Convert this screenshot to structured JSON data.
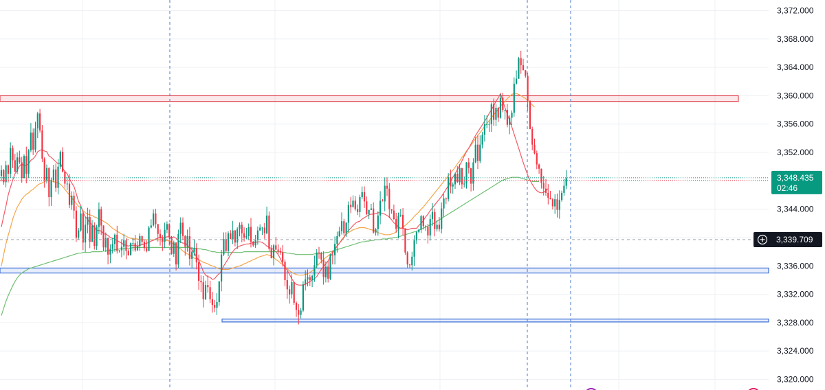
{
  "chart_data": {
    "type": "candlestick",
    "ylim": [
      3318.5,
      3373.5
    ],
    "y_ticks": [
      "3,372.000",
      "3,368.000",
      "3,364.000",
      "3,360.000",
      "3,356.000",
      "3,352.000",
      "3,348.000",
      "3,344.000",
      "3,340.000",
      "3,336.000",
      "3,332.000",
      "3,328.000",
      "3,324.000",
      "3,320.000"
    ],
    "grid": true,
    "last_price": {
      "label": "3,348.435",
      "timer": "02:46",
      "value": 3348.435
    },
    "crosshair": {
      "label": "3,339.709",
      "value": 3339.709
    },
    "zones": [
      {
        "name": "resistance",
        "from": 3359.2,
        "to": 3360.0,
        "color": "#e04550"
      },
      {
        "name": "support-upper",
        "from": 3335.0,
        "to": 3335.7,
        "color": "#3b6fd9"
      },
      {
        "name": "support-lower",
        "from": 3328.1,
        "to": 3328.5,
        "color": "#3b6fd9"
      }
    ],
    "closes": [
      3349.5,
      3347.8,
      3350.2,
      3349.0,
      3352.6,
      3350.9,
      3349.3,
      3351.3,
      3350.6,
      3348.4,
      3351.5,
      3349.0,
      3352.3,
      3354.8,
      3352.4,
      3355.4,
      3357.5,
      3355.1,
      3351.1,
      3348.1,
      3349.8,
      3345.7,
      3348.1,
      3349.6,
      3347.0,
      3350.0,
      3352.1,
      3349.3,
      3347.6,
      3347.6,
      3344.6,
      3345.9,
      3343.8,
      3340.0,
      3341.0,
      3343.4,
      3339.3,
      3341.8,
      3342.9,
      3339.4,
      3341.7,
      3338.8,
      3341.5,
      3344.0,
      3341.7,
      3338.6,
      3339.9,
      3337.6,
      3338.4,
      3339.1,
      3340.4,
      3338.1,
      3338.2,
      3338.7,
      3339.6,
      3338.1,
      3337.5,
      3339.2,
      3339.2,
      3338.2,
      3338.8,
      3340.2,
      3339.4,
      3338.5,
      3338.1,
      3341.4,
      3341.7,
      3343.4,
      3341.9,
      3340.5,
      3339.9,
      3339.4,
      3341.1,
      3341.9,
      3340.1,
      3337.7,
      3339.3,
      3336.2,
      3340.5,
      3342.1,
      3340.2,
      3338.7,
      3340.2,
      3337.0,
      3338.0,
      3338.5,
      3336.5,
      3333.9,
      3333.7,
      3331.3,
      3333.3,
      3333.0,
      3331.3,
      3330.5,
      3330.1,
      3330.9,
      3333.8,
      3337.6,
      3339.8,
      3338.1,
      3340.6,
      3339.8,
      3341.0,
      3339.3,
      3341.2,
      3341.8,
      3340.6,
      3340.0,
      3340.2,
      3341.5,
      3339.4,
      3338.9,
      3339.7,
      3341.0,
      3341.4,
      3341.4,
      3340.6,
      3343.1,
      3338.4,
      3337.1,
      3338.9,
      3338.3,
      3338.1,
      3337.9,
      3336.6,
      3334.0,
      3332.7,
      3332.0,
      3333.7,
      3330.8,
      3329.8,
      3329.1,
      3329.7,
      3333.4,
      3334.1,
      3334.4,
      3334.0,
      3334.6,
      3336.1,
      3337.9,
      3337.8,
      3336.9,
      3334.4,
      3335.9,
      3334.2,
      3337.6,
      3337.5,
      3339.1,
      3340.2,
      3340.9,
      3342.3,
      3340.6,
      3342.1,
      3344.6,
      3344.3,
      3345.2,
      3344.0,
      3343.6,
      3345.7,
      3346.4,
      3345.1,
      3343.3,
      3343.9,
      3344.1,
      3340.7,
      3341.2,
      3343.1,
      3345.2,
      3345.1,
      3347.3,
      3346.9,
      3344.0,
      3343.8,
      3342.6,
      3341.2,
      3343.1,
      3343.2,
      3341.3,
      3337.9,
      3336.2,
      3336.1,
      3337.3,
      3339.6,
      3340.8,
      3341.1,
      3343.0,
      3341.6,
      3341.5,
      3340.3,
      3342.6,
      3343.6,
      3341.2,
      3341.8,
      3341.2,
      3344.1,
      3345.5,
      3345.4,
      3348.5,
      3347.2,
      3347.5,
      3349.0,
      3347.8,
      3349.8,
      3347.5,
      3347.6,
      3350.6,
      3349.8,
      3347.6,
      3350.6,
      3353.1,
      3350.8,
      3353.1,
      3354.5,
      3356.0,
      3356.0,
      3356.0,
      3358.8,
      3356.6,
      3358.3,
      3356.9,
      3359.7,
      3358.0,
      3358.0,
      3355.9,
      3356.9,
      3357.6,
      3361.7,
      3362.4,
      3365.3,
      3364.3,
      3363.6,
      3362.8,
      3359.3,
      3355.3,
      3353.1,
      3351.9,
      3350.3,
      3349.7,
      3347.7,
      3346.9,
      3346.3,
      3345.6,
      3345.4,
      3344.4,
      3345.4,
      3343.9,
      3345.3,
      3346.3,
      3347.3,
      3348.4
    ],
    "ma_red": [
      3341.5,
      3343.0,
      3344.4,
      3346.0,
      3347.1,
      3348.1,
      3349.0,
      3349.5,
      3350.1,
      3350.4,
      3350.1,
      3350.2,
      3350.4,
      3350.9,
      3351.1,
      3351.5,
      3352.1,
      3352.3,
      3352.4,
      3352.2,
      3352.1,
      3351.5,
      3351.3,
      3351.0,
      3350.7,
      3350.4,
      3350.5,
      3349.8,
      3349.3,
      3349.0,
      3348.3,
      3347.7,
      3347.2,
      3346.2,
      3345.1,
      3344.5,
      3343.6,
      3342.9,
      3342.6,
      3342.1,
      3341.8,
      3341.4,
      3341.0,
      3341.0,
      3340.9,
      3340.5,
      3340.5,
      3340.3,
      3340.0,
      3339.9,
      3339.8,
      3339.6,
      3339.4,
      3339.2,
      3339.0,
      3338.9,
      3338.8,
      3338.9,
      3338.9,
      3338.9,
      3338.8,
      3338.9,
      3339.0,
      3339.1,
      3339.2,
      3339.3,
      3339.5,
      3339.6,
      3339.8,
      3339.9,
      3340.1,
      3340.0,
      3340.0,
      3340.1,
      3340.1,
      3340.0,
      3340.1,
      3339.9,
      3339.6,
      3339.4,
      3339.2,
      3339.2,
      3338.9,
      3338.6,
      3338.3,
      3337.8,
      3337.3,
      3336.8,
      3336.0,
      3335.2,
      3334.7,
      3334.5,
      3334.4,
      3334.1,
      3334.2,
      3334.6,
      3334.9,
      3335.3,
      3336.0,
      3336.5,
      3337.0,
      3337.6,
      3338.0,
      3338.4,
      3338.6,
      3338.8,
      3338.9,
      3339.0,
      3339.1,
      3339.1,
      3339.2,
      3339.3,
      3339.3,
      3339.4,
      3339.4,
      3339.3,
      3339.1,
      3338.8,
      3338.6,
      3338.5,
      3338.3,
      3338.0,
      3337.6,
      3337.0,
      3336.3,
      3335.8,
      3335.4,
      3334.8,
      3334.2,
      3333.7,
      3333.4,
      3333.3,
      3333.3,
      3333.3,
      3333.4,
      3333.6,
      3333.8,
      3334.0,
      3334.2,
      3334.5,
      3335.0,
      3335.5,
      3335.9,
      3336.3,
      3336.7,
      3337.3,
      3337.8,
      3338.3,
      3338.8,
      3339.2,
      3339.6,
      3340.0,
      3340.6,
      3341.0,
      3341.3,
      3341.7,
      3342.0,
      3342.2,
      3342.3,
      3342.6,
      3342.8,
      3343.0,
      3343.2,
      3343.3,
      3343.3,
      3343.4,
      3343.5,
      3343.5,
      3343.4,
      3343.3,
      3343.1,
      3342.9,
      3342.5,
      3342.1,
      3341.8,
      3341.5,
      3341.3,
      3341.3,
      3341.2,
      3341.1,
      3341.2,
      3341.3,
      3341.3,
      3341.3,
      3341.7,
      3342.0,
      3342.4,
      3342.9,
      3343.3,
      3343.8,
      3344.2,
      3344.6,
      3345.0,
      3345.4,
      3345.8,
      3346.3,
      3346.8,
      3347.3,
      3347.9,
      3348.5,
      3349.0,
      3349.6,
      3350.2,
      3350.8,
      3351.5,
      3352.1,
      3352.6,
      3353.2,
      3353.8,
      3354.4,
      3354.9,
      3355.4,
      3355.9,
      3356.4,
      3356.9,
      3357.5,
      3358.0,
      3358.6,
      3359.2,
      3359.7,
      3360.3,
      3359.3,
      3358.3,
      3357.4,
      3356.5,
      3355.6,
      3354.6,
      3353.6,
      3352.6,
      3351.6,
      3350.6,
      3349.7,
      3348.8,
      3348.1,
      3347.5,
      3347.0,
      3346.6,
      3346.4,
      3346.3,
      3346.4,
      3346.6,
      3346.9
    ],
    "ma_orange": [
      3336.0,
      3337.6,
      3339.1,
      3340.3,
      3341.4,
      3342.6,
      3343.5,
      3344.3,
      3344.8,
      3345.4,
      3345.8,
      3346.1,
      3346.3,
      3346.6,
      3346.8,
      3347.1,
      3347.4,
      3347.6,
      3347.7,
      3347.9,
      3348.0,
      3348.0,
      3348.0,
      3347.9,
      3347.8,
      3347.7,
      3347.5,
      3347.2,
      3346.8,
      3346.4,
      3346.0,
      3345.6,
      3345.2,
      3344.8,
      3344.4,
      3344.2,
      3343.8,
      3343.5,
      3343.3,
      3343.2,
      3343.1,
      3342.9,
      3342.8,
      3342.6,
      3342.5,
      3342.3,
      3342.1,
      3341.9,
      3341.6,
      3341.3,
      3341.1,
      3340.9,
      3340.7,
      3340.5,
      3340.3,
      3340.2,
      3340.0,
      3339.9,
      3339.8,
      3339.8,
      3339.8,
      3339.7,
      3339.7,
      3339.7,
      3339.7,
      3339.7,
      3339.7,
      3339.7,
      3339.7,
      3339.7,
      3339.7,
      3339.7,
      3339.6,
      3339.6,
      3339.5,
      3339.3,
      3339.1,
      3338.9,
      3338.6,
      3338.4,
      3338.1,
      3337.9,
      3337.7,
      3337.5,
      3337.3,
      3337.1,
      3337.0,
      3336.8,
      3336.7,
      3336.5,
      3336.4,
      3336.3,
      3336.1,
      3336.0,
      3335.9,
      3335.7,
      3335.6,
      3335.5,
      3335.5,
      3335.5,
      3335.5,
      3335.6,
      3335.7,
      3335.8,
      3335.9,
      3336.0,
      3336.1,
      3336.3,
      3336.4,
      3336.6,
      3336.7,
      3336.9,
      3337.0,
      3337.2,
      3337.3,
      3337.4,
      3337.5,
      3337.6,
      3337.5,
      3337.4,
      3337.2,
      3336.9,
      3336.7,
      3336.4,
      3336.2,
      3335.9,
      3335.6,
      3335.3,
      3335.1,
      3334.9,
      3334.8,
      3334.7,
      3334.7,
      3334.7,
      3334.8,
      3334.9,
      3335.1,
      3335.3,
      3335.6,
      3335.9,
      3336.3,
      3336.6,
      3336.9,
      3337.2,
      3337.4,
      3337.7,
      3338.0,
      3338.4,
      3338.8,
      3339.2,
      3339.7,
      3340.1,
      3340.4,
      3340.7,
      3340.9,
      3341.1,
      3341.2,
      3341.3,
      3341.4,
      3341.4,
      3341.4,
      3341.3,
      3341.2,
      3341.1,
      3341.0,
      3340.9,
      3340.7,
      3340.6,
      3340.5,
      3340.4,
      3340.4,
      3340.4,
      3340.5,
      3340.6,
      3340.8,
      3341.1,
      3341.3,
      3341.5,
      3341.7,
      3342.0,
      3342.3,
      3342.6,
      3343.0,
      3343.3,
      3343.6,
      3344.0,
      3344.3,
      3344.7,
      3345.1,
      3345.5,
      3345.9,
      3346.3,
      3346.7,
      3347.1,
      3347.5,
      3347.9,
      3348.3,
      3348.7,
      3349.1,
      3349.5,
      3349.9,
      3350.4,
      3350.8,
      3351.3,
      3351.7,
      3352.2,
      3352.6,
      3353.0,
      3353.5,
      3353.9,
      3354.4,
      3354.8,
      3355.2,
      3355.7,
      3356.1,
      3356.5,
      3356.9,
      3357.3,
      3357.7,
      3358.1,
      3358.5,
      3358.9,
      3359.2,
      3359.6,
      3359.9,
      3360.2,
      3360.3,
      3360.3,
      3360.2,
      3360.0,
      3359.8,
      3359.6,
      3359.3,
      3359.0,
      3358.7,
      3358.4
    ],
    "ma_green": [
      3329.0,
      3330.0,
      3331.0,
      3331.8,
      3332.5,
      3333.2,
      3333.8,
      3334.3,
      3334.7,
      3335.0,
      3335.2,
      3335.4,
      3335.6,
      3335.7,
      3335.8,
      3335.9,
      3336.0,
      3336.1,
      3336.2,
      3336.3,
      3336.4,
      3336.5,
      3336.6,
      3336.7,
      3336.8,
      3336.9,
      3337.0,
      3337.1,
      3337.2,
      3337.3,
      3337.4,
      3337.5,
      3337.6,
      3337.7,
      3337.8,
      3337.8,
      3337.9,
      3337.9,
      3337.9,
      3337.9,
      3338.0,
      3338.0,
      3338.0,
      3338.0,
      3338.0,
      3338.1,
      3338.1,
      3338.2,
      3338.2,
      3338.2,
      3338.3,
      3338.3,
      3338.4,
      3338.4,
      3338.4,
      3338.5,
      3338.5,
      3338.5,
      3338.6,
      3338.6,
      3338.6,
      3338.6,
      3338.6,
      3338.6,
      3338.6,
      3338.6,
      3338.6,
      3338.6,
      3338.6,
      3338.6,
      3338.6,
      3338.6,
      3338.6,
      3338.6,
      3338.6,
      3338.6,
      3338.6,
      3338.6,
      3338.6,
      3338.6,
      3338.6,
      3338.6,
      3338.6,
      3338.6,
      3338.5,
      3338.5,
      3338.5,
      3338.4,
      3338.4,
      3338.3,
      3338.3,
      3338.2,
      3338.1,
      3338.0,
      3338.0,
      3337.9,
      3337.9,
      3337.9,
      3337.9,
      3337.9,
      3337.9,
      3337.9,
      3337.9,
      3337.9,
      3337.9,
      3337.9,
      3337.9,
      3338.0,
      3338.0,
      3338.0,
      3338.0,
      3338.0,
      3338.0,
      3338.0,
      3338.0,
      3338.0,
      3338.0,
      3338.0,
      3338.0,
      3338.0,
      3338.0,
      3338.0,
      3338.0,
      3338.0,
      3337.9,
      3337.9,
      3337.8,
      3337.8,
      3337.7,
      3337.7,
      3337.6,
      3337.6,
      3337.6,
      3337.6,
      3337.6,
      3337.6,
      3337.6,
      3337.6,
      3337.7,
      3337.7,
      3337.7,
      3337.8,
      3337.8,
      3337.9,
      3337.9,
      3338.0,
      3338.1,
      3338.2,
      3338.3,
      3338.4,
      3338.5,
      3338.6,
      3338.7,
      3338.8,
      3338.9,
      3339.0,
      3339.1,
      3339.2,
      3339.3,
      3339.4,
      3339.4,
      3339.5,
      3339.5,
      3339.6,
      3339.6,
      3339.7,
      3339.7,
      3339.7,
      3339.8,
      3339.8,
      3339.8,
      3339.9,
      3339.9,
      3340.0,
      3340.0,
      3340.1,
      3340.2,
      3340.3,
      3340.4,
      3340.5,
      3340.6,
      3340.7,
      3340.8,
      3340.9,
      3341.0,
      3341.2,
      3341.3,
      3341.5,
      3341.6,
      3341.8,
      3341.9,
      3342.1,
      3342.3,
      3342.5,
      3342.7,
      3342.9,
      3343.1,
      3343.3,
      3343.5,
      3343.7,
      3343.9,
      3344.1,
      3344.3,
      3344.5,
      3344.7,
      3344.9,
      3345.1,
      3345.3,
      3345.5,
      3345.7,
      3345.9,
      3346.1,
      3346.3,
      3346.5,
      3346.7,
      3346.9,
      3347.1,
      3347.3,
      3347.5,
      3347.7,
      3347.9,
      3348.1,
      3348.2,
      3348.3,
      3348.4,
      3348.5,
      3348.5,
      3348.5,
      3348.5,
      3348.4,
      3348.3,
      3348.2,
      3348.1,
      3348.0,
      3347.9,
      3347.9,
      3347.9,
      3347.9
    ]
  },
  "colors": {
    "bull": "#089981",
    "bear": "#f23645",
    "ma_red": "#f05a65",
    "ma_orange": "#f5a54a",
    "ma_green": "#6fbf73",
    "grid": "#eef0f3",
    "vline": "#4a78c8",
    "crosshair": "#9598a1",
    "tag_price": "#089981",
    "tag_cross": "#131722"
  },
  "icons": {
    "crosshair_plus": "plus-circle-icon"
  }
}
